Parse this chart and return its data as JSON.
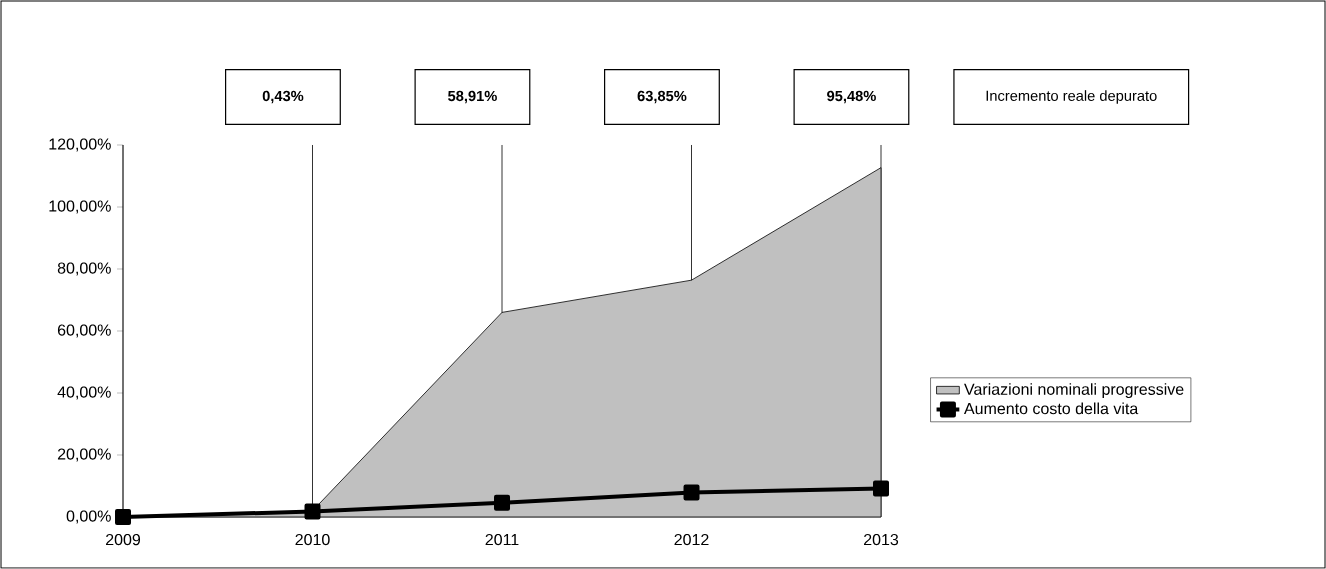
{
  "chart_data": {
    "type": "line",
    "categories": [
      "2009",
      "2010",
      "2011",
      "2012",
      "2013"
    ],
    "series": [
      {
        "name": "Variazioni nominali progressive",
        "type": "area",
        "color": "#c0c0c0",
        "values": [
          0,
          2.0,
          66.0,
          76.4,
          112.7
        ]
      },
      {
        "name": "Aumento costo della vita",
        "color": "#000000",
        "marker": "square",
        "values": [
          0,
          1.8,
          4.6,
          7.9,
          9.2
        ]
      }
    ],
    "ylim": [
      0,
      120
    ],
    "yticks": [
      {
        "value": 0,
        "label": "0,00%"
      },
      {
        "value": 20,
        "label": "20,00%"
      },
      {
        "value": 40,
        "label": "40,00%"
      },
      {
        "value": 60,
        "label": "60,00%"
      },
      {
        "value": 80,
        "label": "80,00%"
      },
      {
        "value": 100,
        "label": "100,00%"
      },
      {
        "value": 120,
        "label": "120,00%"
      }
    ],
    "annotations": [
      "0,43%",
      "58,91%",
      "63,85%",
      "95,48%",
      "Incremento reale depurato"
    ],
    "legend": "right",
    "grid": "x"
  }
}
